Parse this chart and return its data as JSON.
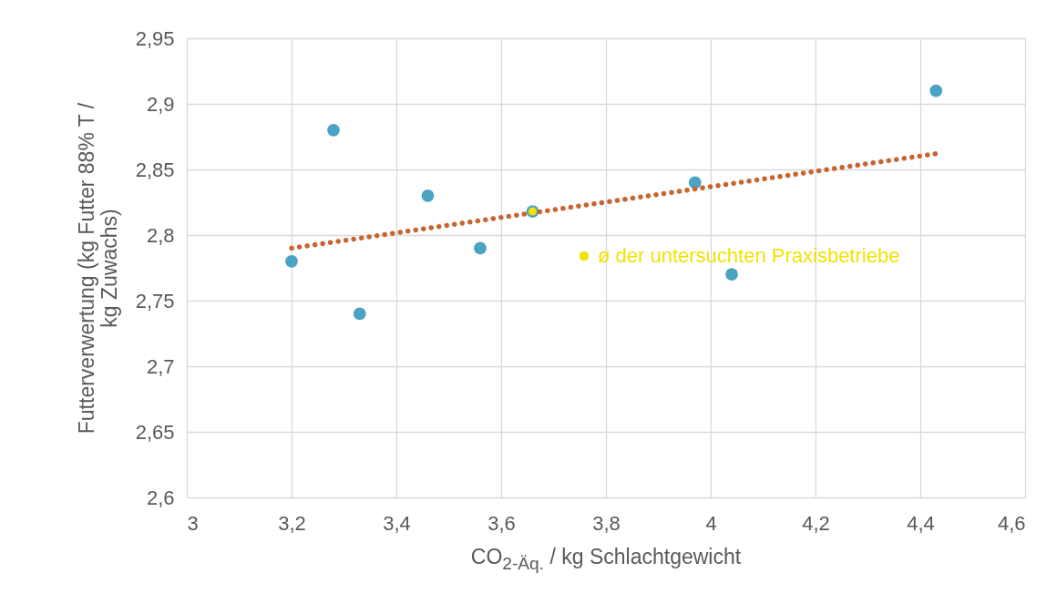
{
  "chart_data": {
    "type": "scatter",
    "xlabel": "CO$_{2-Äq.}$ / kg Schlachtgewicht",
    "ylabel": "Futterverwertung (kg Futter 88% T / kg Zuwachs)",
    "xlim": [
      3,
      4.6
    ],
    "xticks": [
      3,
      {
        "value": 3.2,
        "label": "3,2"
      },
      {
        "value": 3.4,
        "label": "3,4"
      },
      {
        "value": 3.6,
        "label": "3,6"
      },
      {
        "value": 3.8,
        "label": "3,8"
      },
      4,
      {
        "value": 4.2,
        "label": "4,2"
      },
      {
        "value": 4.4,
        "label": "4,4"
      },
      {
        "value": 4.6,
        "label": "4,6"
      }
    ],
    "ylim": [
      2.6,
      2.95
    ],
    "yticks": [
      {
        "value": 2.6,
        "label": "2,6"
      },
      {
        "value": 2.65,
        "label": "2,65"
      },
      {
        "value": 2.7,
        "label": "2,7"
      },
      {
        "value": 2.75,
        "label": "2,75"
      },
      {
        "value": 2.8,
        "label": "2,8"
      },
      {
        "value": 2.85,
        "label": "2,85"
      },
      {
        "value": 2.9,
        "label": "2,9"
      },
      {
        "value": 2.95,
        "label": "2,95"
      }
    ],
    "grid": true,
    "marker": "circle",
    "legend": "right",
    "series": [
      {
        "color": "#4ba3c3",
        "x": [
          3.2,
          3.28,
          3.33,
          3.46,
          3.56,
          3.66,
          3.97,
          4.04,
          4.43
        ],
        "values": [
          2.78,
          2.88,
          2.74,
          2.83,
          2.79,
          2.818,
          2.84,
          2.77,
          2.91
        ]
      },
      {
        "type": "line",
        "color": "#c8652f",
        "line_style": "dotted",
        "marker": "none",
        "x": [
          3.2,
          4.43
        ],
        "values": [
          2.79,
          2.862
        ]
      },
      {
        "name": "ø der untersuchten Praxisbetriebe",
        "color": "#f2e205",
        "x": [
          3.66
        ],
        "values": [
          2.818
        ]
      }
    ]
  }
}
